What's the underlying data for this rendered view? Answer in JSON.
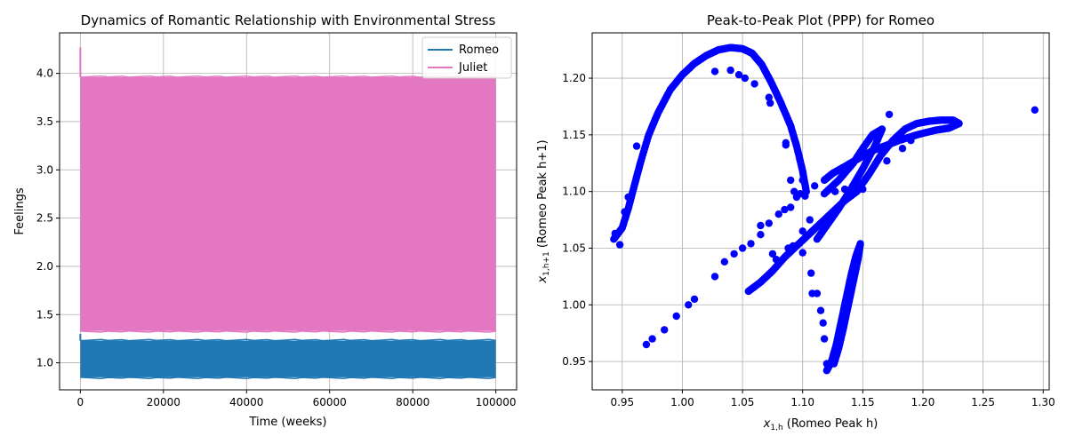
{
  "chart_data": [
    {
      "type": "area",
      "title": "Dynamics of Romantic Relationship with Environmental Stress",
      "xlabel": "Time (weeks)",
      "ylabel": "Feelings",
      "xlim": [
        -5000,
        105000
      ],
      "ylim": [
        0.72,
        4.42
      ],
      "x_ticks": [
        0,
        20000,
        40000,
        60000,
        80000,
        100000
      ],
      "x_tick_labels": [
        "0",
        "20000",
        "40000",
        "60000",
        "80000",
        "100000"
      ],
      "y_ticks": [
        1.0,
        1.5,
        2.0,
        2.5,
        3.0,
        3.5,
        4.0
      ],
      "y_tick_labels": [
        "1.0",
        "1.5",
        "2.0",
        "2.5",
        "3.0",
        "3.5",
        "4.0"
      ],
      "grid": true,
      "legend_position": "top-right",
      "series": [
        {
          "name": "Romeo",
          "color": "#1f77b4",
          "x_range": [
            0,
            100000
          ],
          "band_min": 0.85,
          "band_max": 1.23,
          "initial_peak": 1.3
        },
        {
          "name": "Juliet",
          "color": "#e377c2",
          "x_range": [
            0,
            100000
          ],
          "band_min": 1.33,
          "band_max": 3.96,
          "initial_peak": 4.27
        }
      ]
    },
    {
      "type": "scatter",
      "title": "Peak-to-Peak Plot (PPP) for Romeo",
      "xlabel": "x_{1,h} (Romeo Peak h)",
      "ylabel": "x_{1,h+1} (Romeo Peak h+1)",
      "xlabel_main": "x",
      "xlabel_sub": "1,h",
      "xlabel_rest": " (Romeo Peak h)",
      "ylabel_main": "x",
      "ylabel_sub": "1,h+1",
      "ylabel_rest": " (Romeo Peak h+1)",
      "xlim": [
        0.925,
        1.305
      ],
      "ylim": [
        0.925,
        1.24
      ],
      "x_ticks": [
        0.95,
        1.0,
        1.05,
        1.1,
        1.15,
        1.2,
        1.25,
        1.3
      ],
      "x_tick_labels": [
        "0.95",
        "1.00",
        "1.05",
        "1.10",
        "1.15",
        "1.20",
        "1.25",
        "1.30"
      ],
      "y_ticks": [
        0.95,
        1.0,
        1.05,
        1.1,
        1.15,
        1.2
      ],
      "y_tick_labels": [
        "0.95",
        "1.00",
        "1.05",
        "1.10",
        "1.15",
        "1.20"
      ],
      "grid": true,
      "color": "#0000ff",
      "curves": [
        {
          "name": "arch",
          "points": [
            [
              0.943,
              1.058
            ],
            [
              0.95,
              1.068
            ],
            [
              0.955,
              1.085
            ],
            [
              0.96,
              1.105
            ],
            [
              0.965,
              1.125
            ],
            [
              0.972,
              1.15
            ],
            [
              0.98,
              1.17
            ],
            [
              0.99,
              1.19
            ],
            [
              1.0,
              1.203
            ],
            [
              1.01,
              1.213
            ],
            [
              1.02,
              1.22
            ],
            [
              1.03,
              1.225
            ],
            [
              1.04,
              1.227
            ],
            [
              1.05,
              1.226
            ],
            [
              1.058,
              1.222
            ],
            [
              1.066,
              1.212
            ],
            [
              1.074,
              1.196
            ],
            [
              1.082,
              1.178
            ],
            [
              1.09,
              1.158
            ],
            [
              1.095,
              1.14
            ],
            [
              1.1,
              1.118
            ],
            [
              1.103,
              1.1
            ]
          ]
        },
        {
          "name": "lower-arm",
          "points": [
            [
              1.055,
              1.012
            ],
            [
              1.065,
              1.02
            ],
            [
              1.075,
              1.03
            ],
            [
              1.085,
              1.042
            ],
            [
              1.095,
              1.052
            ],
            [
              1.105,
              1.062
            ],
            [
              1.115,
              1.072
            ],
            [
              1.125,
              1.082
            ],
            [
              1.135,
              1.092
            ],
            [
              1.145,
              1.1
            ],
            [
              1.155,
              1.115
            ],
            [
              1.165,
              1.132
            ],
            [
              1.175,
              1.145
            ],
            [
              1.185,
              1.155
            ],
            [
              1.195,
              1.16
            ],
            [
              1.205,
              1.162
            ],
            [
              1.215,
              1.163
            ],
            [
              1.225,
              1.163
            ],
            [
              1.23,
              1.16
            ],
            [
              1.222,
              1.156
            ],
            [
              1.21,
              1.154
            ],
            [
              1.195,
              1.15
            ],
            [
              1.18,
              1.145
            ],
            [
              1.168,
              1.14
            ],
            [
              1.158,
              1.136
            ],
            [
              1.148,
              1.13
            ],
            [
              1.135,
              1.122
            ],
            [
              1.125,
              1.116
            ],
            [
              1.118,
              1.11
            ]
          ]
        },
        {
          "name": "hook",
          "points": [
            [
              1.112,
              1.058
            ],
            [
              1.12,
              1.07
            ],
            [
              1.13,
              1.085
            ],
            [
              1.14,
              1.102
            ],
            [
              1.15,
              1.12
            ],
            [
              1.16,
              1.14
            ],
            [
              1.166,
              1.155
            ],
            [
              1.158,
              1.15
            ],
            [
              1.15,
              1.138
            ],
            [
              1.142,
              1.125
            ],
            [
              1.13,
              1.11
            ],
            [
              1.118,
              1.098
            ]
          ]
        },
        {
          "name": "spike",
          "points": [
            [
              1.12,
              0.942
            ],
            [
              1.124,
              0.95
            ],
            [
              1.128,
              0.965
            ],
            [
              1.132,
              0.985
            ],
            [
              1.136,
              1.005
            ],
            [
              1.14,
              1.025
            ],
            [
              1.144,
              1.042
            ],
            [
              1.148,
              1.054
            ],
            [
              1.146,
              1.04
            ],
            [
              1.142,
              1.02
            ],
            [
              1.138,
              1.0
            ],
            [
              1.134,
              0.98
            ],
            [
              1.13,
              0.962
            ],
            [
              1.126,
              0.948
            ]
          ]
        }
      ],
      "points": [
        [
          0.97,
          0.965
        ],
        [
          0.975,
          0.97
        ],
        [
          0.985,
          0.978
        ],
        [
          0.995,
          0.99
        ],
        [
          1.005,
          1.0
        ],
        [
          1.01,
          1.005
        ],
        [
          1.027,
          1.025
        ],
        [
          1.035,
          1.038
        ],
        [
          1.043,
          1.045
        ],
        [
          1.05,
          1.05
        ],
        [
          1.057,
          1.054
        ],
        [
          1.065,
          1.07
        ],
        [
          1.072,
          1.072
        ],
        [
          1.08,
          1.08
        ],
        [
          1.085,
          1.084
        ],
        [
          1.09,
          1.086
        ],
        [
          1.095,
          1.095
        ],
        [
          1.098,
          1.098
        ],
        [
          1.1,
          1.11
        ],
        [
          1.102,
          1.096
        ],
        [
          1.106,
          1.075
        ],
        [
          1.11,
          1.105
        ],
        [
          1.117,
          1.068
        ],
        [
          1.1,
          1.065
        ],
        [
          1.1,
          1.046
        ],
        [
          1.107,
          1.028
        ],
        [
          1.108,
          1.01
        ],
        [
          1.112,
          1.01
        ],
        [
          1.115,
          0.995
        ],
        [
          1.117,
          0.984
        ],
        [
          1.118,
          0.97
        ],
        [
          1.12,
          0.948
        ],
        [
          1.127,
          1.1
        ],
        [
          1.135,
          1.102
        ],
        [
          1.143,
          1.1
        ],
        [
          1.15,
          1.102
        ],
        [
          1.17,
          1.127
        ],
        [
          1.172,
          1.168
        ],
        [
          1.183,
          1.138
        ],
        [
          1.19,
          1.145
        ],
        [
          1.027,
          1.206
        ],
        [
          1.04,
          1.207
        ],
        [
          1.047,
          1.203
        ],
        [
          1.052,
          1.2
        ],
        [
          1.06,
          1.195
        ],
        [
          1.072,
          1.183
        ],
        [
          1.073,
          1.178
        ],
        [
          1.086,
          1.143
        ],
        [
          1.086,
          1.141
        ],
        [
          1.09,
          1.11
        ],
        [
          1.093,
          1.1
        ],
        [
          1.293,
          1.172
        ],
        [
          0.965,
          1.125
        ],
        [
          0.962,
          1.14
        ],
        [
          0.955,
          1.095
        ],
        [
          0.952,
          1.082
        ],
        [
          0.944,
          1.063
        ],
        [
          0.948,
          1.053
        ],
        [
          1.065,
          1.062
        ],
        [
          1.075,
          1.045
        ],
        [
          1.078,
          1.04
        ],
        [
          1.088,
          1.05
        ],
        [
          1.092,
          1.052
        ]
      ]
    }
  ]
}
